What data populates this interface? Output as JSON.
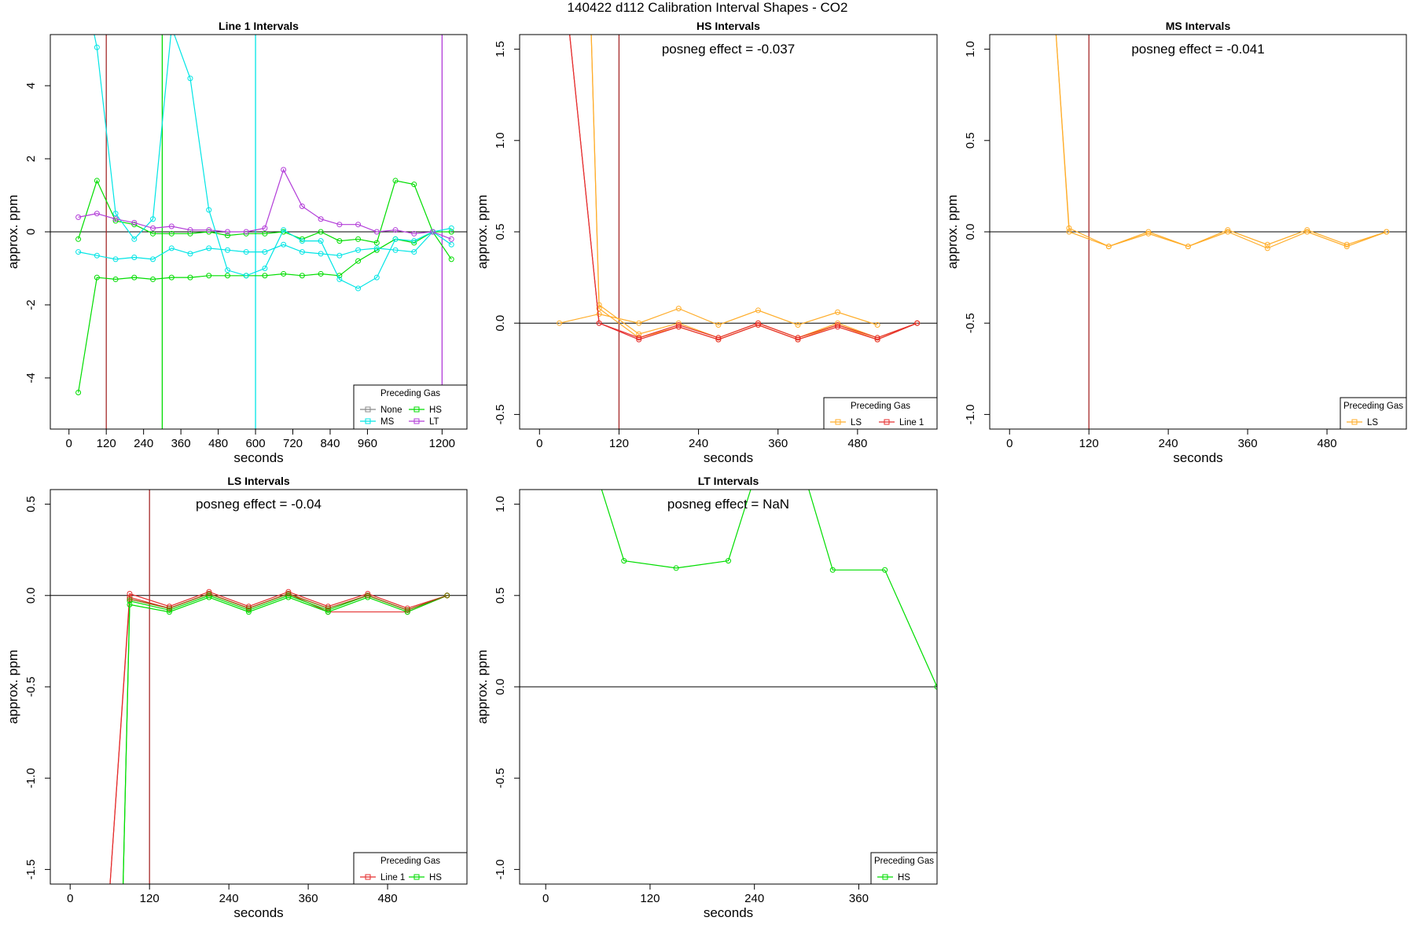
{
  "figure": {
    "title": "140422  d112   Calibration Interval Shapes - CO2"
  },
  "colors": {
    "None": "#888888",
    "HS": "#00dd00",
    "MS": "#00e5e5",
    "LT": "#b23cd8",
    "LS": "#ffad2a",
    "Line 1": "#e52e2e",
    "marker_120": "#a52a2a"
  },
  "chart_data": [
    {
      "id": "line1",
      "type": "line",
      "title": "Line 1 Intervals",
      "xlabel": "seconds",
      "ylabel": "approx. ppm",
      "xlim": [
        -60,
        1280
      ],
      "ylim": [
        -5.4,
        5.4
      ],
      "xticks": [
        0,
        120,
        240,
        360,
        480,
        600,
        720,
        840,
        960,
        1200
      ],
      "yticks": [
        -4,
        -2,
        0,
        2,
        4
      ],
      "grid": false,
      "annotation": "",
      "vlines": [
        {
          "x": 120,
          "color": "#a52a2a"
        },
        {
          "x": 300,
          "color": "#00dd00"
        },
        {
          "x": 600,
          "color": "#00e5e5"
        },
        {
          "x": 1200,
          "color": "#b23cd8"
        }
      ],
      "legend": {
        "title": "Preceding Gas",
        "position": "bottom-right",
        "columns": 2,
        "entries": [
          "None",
          "HS",
          "MS",
          "LT"
        ]
      },
      "series": [
        {
          "name": "HS",
          "color": "#00dd00",
          "x": [
            30,
            90,
            150,
            210,
            270,
            330,
            390,
            450,
            510,
            570,
            630,
            690,
            750,
            810,
            870,
            930,
            990,
            1050,
            1110,
            1170,
            1230
          ],
          "y": [
            -4.4,
            -1.25,
            -1.3,
            -1.25,
            -1.3,
            -1.25,
            -1.25,
            -1.2,
            -1.2,
            -1.2,
            -1.2,
            -1.15,
            -1.2,
            -1.15,
            -1.2,
            -0.8,
            -0.5,
            -0.2,
            -0.3,
            0.0,
            -0.75
          ]
        },
        {
          "name": "HS",
          "color": "#00dd00",
          "x": [
            30,
            90,
            150,
            210,
            270,
            330,
            390,
            450,
            510,
            570,
            630,
            690,
            750,
            810,
            870,
            930,
            990,
            1050,
            1110,
            1170,
            1230
          ],
          "y": [
            -0.2,
            1.4,
            0.3,
            0.2,
            -0.05,
            -0.05,
            -0.05,
            0.0,
            -0.1,
            -0.05,
            -0.05,
            0.0,
            -0.2,
            0.0,
            -0.25,
            -0.2,
            -0.3,
            1.4,
            1.3,
            0.0,
            0.0
          ]
        },
        {
          "name": "MS",
          "color": "#00e5e5",
          "x": [
            30,
            90,
            150,
            210,
            270,
            330,
            390,
            450,
            510,
            570,
            630,
            690,
            750,
            810,
            870,
            930,
            990,
            1050,
            1110,
            1170,
            1230
          ],
          "y": [
            -0.55,
            -0.65,
            -0.75,
            -0.7,
            -0.75,
            -0.45,
            -0.6,
            -0.45,
            -0.5,
            -0.55,
            -0.55,
            -0.35,
            -0.55,
            -0.6,
            -0.65,
            -0.5,
            -0.45,
            -0.5,
            -0.55,
            0.0,
            0.1
          ]
        },
        {
          "name": "MS",
          "color": "#00e5e5",
          "x": [
            30,
            90,
            150,
            210,
            270,
            330,
            390,
            450,
            510,
            570,
            630,
            690,
            750,
            810,
            870,
            930,
            990,
            1050,
            1110,
            1170,
            1230
          ],
          "y": [
            7.5,
            5.05,
            0.5,
            -0.2,
            0.35,
            5.6,
            4.2,
            0.6,
            -1.05,
            -1.2,
            -1.0,
            0.05,
            -0.25,
            -0.25,
            -1.3,
            -1.55,
            -1.25,
            -0.2,
            -0.25,
            0.0,
            -0.35
          ]
        },
        {
          "name": "LT",
          "color": "#b23cd8",
          "x": [
            30,
            90,
            150,
            210,
            270,
            330,
            390,
            450,
            510,
            570,
            630,
            690,
            750,
            810,
            870,
            930,
            990,
            1050,
            1110,
            1170,
            1230
          ],
          "y": [
            0.4,
            0.5,
            0.35,
            0.25,
            0.1,
            0.15,
            0.05,
            0.05,
            0.0,
            0.0,
            0.1,
            1.7,
            0.7,
            0.35,
            0.2,
            0.2,
            0.0,
            0.05,
            -0.05,
            0.0,
            -0.2
          ]
        }
      ]
    },
    {
      "id": "hs",
      "type": "line",
      "title": "HS Intervals",
      "xlabel": "seconds",
      "ylabel": "approx. ppm",
      "xlim": [
        -30,
        600
      ],
      "ylim": [
        -0.58,
        1.58
      ],
      "xticks": [
        0,
        120,
        240,
        360,
        480
      ],
      "yticks": [
        -0.5,
        0.0,
        0.5,
        1.0,
        1.5
      ],
      "grid": false,
      "annotation": "posneg effect = -0.037",
      "vlines": [
        {
          "x": 120,
          "color": "#a52a2a"
        }
      ],
      "legend": {
        "title": "Preceding Gas",
        "position": "bottom-right",
        "columns": 2,
        "entries": [
          "LS",
          "Line 1"
        ]
      },
      "series": [
        {
          "name": "LS",
          "color": "#ffad2a",
          "x": [
            30,
            90,
            150,
            210,
            270,
            330,
            390,
            450,
            510
          ],
          "y": [
            0.0,
            0.05,
            0.0,
            0.08,
            -0.01,
            0.07,
            -0.01,
            0.06,
            -0.01
          ]
        },
        {
          "name": "LS",
          "color": "#ffad2a",
          "x": [
            78,
            90,
            150,
            210,
            270,
            330,
            390,
            450,
            510,
            570
          ],
          "y": [
            1.6,
            0.1,
            -0.06,
            0.0,
            -0.08,
            0.0,
            -0.08,
            0.0,
            -0.08,
            0.0
          ]
        },
        {
          "name": "LS",
          "color": "#ffad2a",
          "x": [
            78,
            90,
            150,
            210,
            270,
            330,
            390,
            450,
            510,
            570
          ],
          "y": [
            1.6,
            0.08,
            -0.08,
            -0.02,
            -0.09,
            -0.01,
            -0.09,
            -0.01,
            -0.09,
            0.0
          ]
        },
        {
          "name": "Line 1",
          "color": "#e52e2e",
          "x": [
            45,
            90,
            150,
            210,
            270,
            330,
            390,
            450,
            510,
            570
          ],
          "y": [
            1.6,
            0.0,
            -0.08,
            -0.01,
            -0.08,
            0.0,
            -0.08,
            -0.01,
            -0.08,
            0.0
          ]
        },
        {
          "name": "Line 1",
          "color": "#e52e2e",
          "x": [
            45,
            90,
            150,
            210,
            270,
            330,
            390,
            450,
            510,
            570
          ],
          "y": [
            1.6,
            0.0,
            -0.09,
            -0.02,
            -0.09,
            -0.01,
            -0.09,
            -0.02,
            -0.09,
            0.0
          ]
        }
      ]
    },
    {
      "id": "ms",
      "type": "line",
      "title": "MS Intervals",
      "xlabel": "seconds",
      "ylabel": "approx. ppm",
      "xlim": [
        -30,
        600
      ],
      "ylim": [
        -1.08,
        1.08
      ],
      "xticks": [
        0,
        120,
        240,
        360,
        480
      ],
      "yticks": [
        -1.0,
        -0.5,
        0.0,
        0.5,
        1.0
      ],
      "grid": false,
      "annotation": "posneg effect = -0.041",
      "vlines": [
        {
          "x": 120,
          "color": "#a52a2a"
        }
      ],
      "legend": {
        "title": "Preceding Gas",
        "position": "bottom-right",
        "columns": 1,
        "entries": [
          "LS"
        ]
      },
      "series": [
        {
          "name": "LS",
          "color": "#ffad2a",
          "x": [
            70,
            90,
            150,
            210,
            270,
            330,
            390,
            450,
            510,
            570
          ],
          "y": [
            1.1,
            0.02,
            -0.08,
            -0.01,
            -0.08,
            0.01,
            -0.07,
            0.01,
            -0.07,
            0.0
          ]
        },
        {
          "name": "LS",
          "color": "#ffad2a",
          "x": [
            70,
            90,
            150,
            210,
            270,
            330,
            390,
            450,
            510,
            570
          ],
          "y": [
            1.1,
            0.0,
            -0.08,
            0.0,
            -0.08,
            0.0,
            -0.09,
            0.0,
            -0.08,
            0.0
          ]
        }
      ]
    },
    {
      "id": "ls",
      "type": "line",
      "title": "LS Intervals",
      "xlabel": "seconds",
      "ylabel": "approx. ppm",
      "xlim": [
        -30,
        600
      ],
      "ylim": [
        -1.58,
        0.58
      ],
      "xticks": [
        0,
        120,
        240,
        360,
        480
      ],
      "yticks": [
        -1.5,
        -1.0,
        -0.5,
        0.0,
        0.5
      ],
      "grid": false,
      "annotation": "posneg effect = -0.04",
      "vlines": [
        {
          "x": 120,
          "color": "#a52a2a"
        }
      ],
      "legend": {
        "title": "Preceding Gas",
        "position": "bottom-right",
        "columns": 2,
        "entries": [
          "Line 1",
          "HS"
        ]
      },
      "series": [
        {
          "name": "Line 1",
          "color": "#e52e2e",
          "x": [
            60,
            90,
            150,
            210,
            270,
            330,
            390,
            450,
            510,
            570
          ],
          "y": [
            -1.6,
            0.01,
            -0.06,
            0.02,
            -0.06,
            0.02,
            -0.06,
            0.01,
            -0.07,
            0.0
          ]
        },
        {
          "name": "Line 1",
          "color": "#e52e2e",
          "x": [
            60,
            90,
            150,
            210,
            270,
            330,
            390,
            510,
            570
          ],
          "y": [
            -1.6,
            -0.01,
            -0.07,
            0.01,
            -0.07,
            0.01,
            -0.09,
            -0.09,
            0.0
          ]
        },
        {
          "name": "HS",
          "color": "#00dd00",
          "x": [
            80,
            90,
            150,
            210,
            270,
            330,
            390,
            450,
            510,
            570
          ],
          "y": [
            -1.6,
            -0.05,
            -0.09,
            -0.01,
            -0.09,
            -0.01,
            -0.09,
            -0.01,
            -0.09,
            0.0
          ]
        },
        {
          "name": "HS",
          "color": "#00dd00",
          "x": [
            80,
            90,
            150,
            210,
            270,
            330,
            390,
            450,
            510,
            570
          ],
          "y": [
            -1.6,
            -0.03,
            -0.08,
            0.0,
            -0.08,
            0.0,
            -0.08,
            0.0,
            -0.08,
            0.0
          ]
        },
        {
          "name": "",
          "color": "#8b5a00",
          "x": [
            90,
            150,
            210,
            270,
            330,
            390,
            450,
            510,
            570
          ],
          "y": [
            -0.02,
            -0.07,
            0.01,
            -0.07,
            0.01,
            -0.07,
            0.0,
            -0.08,
            0.0
          ]
        }
      ]
    },
    {
      "id": "lt",
      "type": "line",
      "title": "LT Intervals",
      "xlabel": "seconds",
      "ylabel": "approx. ppm",
      "xlim": [
        -30,
        450
      ],
      "ylim": [
        -1.08,
        1.08
      ],
      "xticks": [
        0,
        120,
        240,
        360
      ],
      "yticks": [
        -1.0,
        -0.5,
        0.0,
        0.5,
        1.0
      ],
      "grid": false,
      "annotation": "posneg effect = NaN",
      "vlines": [],
      "legend": {
        "title": "Preceding Gas",
        "position": "bottom-right",
        "columns": 1,
        "entries": [
          "HS"
        ]
      },
      "series": [
        {
          "name": "HS",
          "color": "#00dd00",
          "x": [
            30,
            90,
            150,
            210,
            270,
            330,
            390,
            450
          ],
          "y": [
            1.6,
            0.69,
            0.65,
            0.69,
            1.6,
            0.64,
            0.64,
            0.0
          ]
        }
      ]
    }
  ]
}
